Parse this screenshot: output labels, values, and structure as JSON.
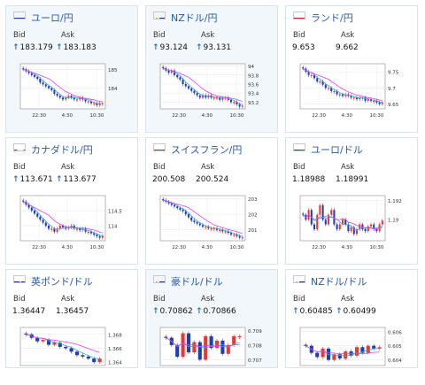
{
  "labels": {
    "bid": "Bid",
    "ask": "Ask"
  },
  "colors": {
    "up": "#e53935",
    "down": "#1e3cb4",
    "ma_short": "#3aa7d6",
    "ma_long": "#e040fb",
    "title": "#2a5aa0"
  },
  "cards": [
    {
      "title": "ユーロ/円",
      "flag": "eu",
      "bid": "183.179",
      "ask": "183.183",
      "bid_arrow": true,
      "ask_arrow": true,
      "yticks": [
        "185",
        "184"
      ],
      "xticks": [
        "22:30",
        "4:30",
        "10:30"
      ],
      "series": [
        185.0,
        184.9,
        184.8,
        184.7,
        184.6,
        184.5,
        184.3,
        184.2,
        184.1,
        184.0,
        183.9,
        183.7,
        183.6,
        183.5,
        183.4,
        183.5,
        183.6,
        183.5,
        183.4,
        183.4,
        183.5,
        183.4,
        183.3,
        183.3,
        183.2,
        183.2,
        183.1,
        183.2,
        183.2
      ],
      "ylim": [
        182.9,
        185.3
      ]
    },
    {
      "title": "NZドル/円",
      "flag": "nz",
      "bid": "93.124",
      "ask": "93.131",
      "bid_arrow": true,
      "ask_arrow": true,
      "yticks": [
        "94",
        "93.8",
        "93.6",
        "93.4",
        "93.2"
      ],
      "xticks": [
        "22:30",
        "4:30",
        "10:30"
      ],
      "series": [
        93.95,
        93.9,
        93.85,
        93.9,
        93.8,
        93.75,
        93.7,
        93.6,
        93.55,
        93.5,
        93.45,
        93.4,
        93.35,
        93.3,
        93.35,
        93.3,
        93.35,
        93.3,
        93.3,
        93.3,
        93.25,
        93.3,
        93.3,
        93.25,
        93.2,
        93.2,
        93.15,
        93.1,
        93.12
      ],
      "ylim": [
        93.05,
        94.05
      ]
    },
    {
      "title": "ランド/円",
      "flag": "za",
      "bid": "9.653",
      "ask": "9.662",
      "bid_arrow": false,
      "ask_arrow": false,
      "yticks": [
        "9.75",
        "9.7",
        "9.65"
      ],
      "xticks": [
        "22:30",
        "4:30",
        "10:30"
      ],
      "series": [
        9.76,
        9.75,
        9.74,
        9.74,
        9.73,
        9.72,
        9.72,
        9.71,
        9.7,
        9.7,
        9.69,
        9.69,
        9.68,
        9.68,
        9.675,
        9.68,
        9.675,
        9.67,
        9.67,
        9.665,
        9.67,
        9.67,
        9.66,
        9.665,
        9.66,
        9.66,
        9.655,
        9.65,
        9.655
      ],
      "ylim": [
        9.635,
        9.775
      ]
    },
    {
      "title": "カナダドル/円",
      "flag": "ca",
      "bid": "113.671",
      "ask": "113.677",
      "bid_arrow": true,
      "ask_arrow": true,
      "yticks": [
        "114.5",
        "114"
      ],
      "xticks": [
        "22:30",
        "4:30",
        "10:30"
      ],
      "series": [
        114.8,
        114.7,
        114.6,
        114.5,
        114.4,
        114.3,
        114.2,
        114.1,
        114.0,
        113.9,
        113.9,
        113.8,
        113.9,
        114.0,
        113.95,
        113.9,
        113.95,
        114.0,
        113.9,
        113.9,
        113.85,
        113.9,
        113.8,
        113.8,
        113.75,
        113.7,
        113.65,
        113.6,
        113.67
      ],
      "ylim": [
        113.5,
        115.0
      ]
    },
    {
      "title": "スイスフラン/円",
      "flag": "ch",
      "bid": "200.508",
      "ask": "200.524",
      "bid_arrow": false,
      "ask_arrow": false,
      "yticks": [
        "203",
        "202",
        "201"
      ],
      "xticks": [
        "22:30",
        "4:30",
        "10:30"
      ],
      "series": [
        202.9,
        202.8,
        202.7,
        202.6,
        202.5,
        202.4,
        202.3,
        202.2,
        202.0,
        201.8,
        201.6,
        201.5,
        201.4,
        201.3,
        201.2,
        201.2,
        201.1,
        201.1,
        201.1,
        201.0,
        201.0,
        200.9,
        200.9,
        200.8,
        200.7,
        200.7,
        200.6,
        200.5,
        200.52
      ],
      "ylim": [
        200.3,
        203.2
      ]
    },
    {
      "title": "ユーロ/ドル",
      "flag": "us",
      "bid": "1.18988",
      "ask": "1.18991",
      "bid_arrow": false,
      "ask_arrow": false,
      "yticks": [
        "1.192",
        "1.19"
      ],
      "xticks": [
        "22:30",
        "4:30",
        "10:30"
      ],
      "series": [
        1.1905,
        1.19,
        1.191,
        1.1895,
        1.189,
        1.1905,
        1.1915,
        1.19,
        1.1895,
        1.1905,
        1.191,
        1.1895,
        1.189,
        1.1895,
        1.19,
        1.1895,
        1.1888,
        1.1892,
        1.1885,
        1.189,
        1.1895,
        1.189,
        1.1888,
        1.1893,
        1.1895,
        1.189,
        1.1888,
        1.1895,
        1.1899
      ],
      "ylim": [
        1.1878,
        1.1925
      ]
    },
    {
      "title": "英ポンド/ドル",
      "flag": "gb",
      "bid": "1.36447",
      "ask": "1.36457",
      "bid_arrow": false,
      "ask_arrow": false,
      "yticks": [
        "1.368",
        "1.366",
        "1.364"
      ],
      "xticks": [],
      "series": [
        1.368,
        1.3675,
        1.367,
        1.3672,
        1.3665,
        1.3668,
        1.3662,
        1.366,
        1.3655,
        1.365,
        1.3648,
        1.3645,
        1.364,
        1.3645
      ],
      "ylim": [
        1.3635,
        1.369
      ]
    },
    {
      "title": "豪ドル/ドル",
      "flag": "au",
      "bid": "0.70862",
      "ask": "0.70866",
      "bid_arrow": true,
      "ask_arrow": true,
      "yticks": [
        "0.709",
        "0.708",
        "0.707"
      ],
      "xticks": [],
      "series": [
        0.7085,
        0.708,
        0.7072,
        0.7088,
        0.7075,
        0.7082,
        0.707,
        0.7086,
        0.7078,
        0.7083,
        0.7074,
        0.708,
        0.7086,
        0.7086
      ],
      "ylim": [
        0.7066,
        0.7092
      ]
    },
    {
      "title": "NZドル/ドル",
      "flag": "nz",
      "bid": "0.60485",
      "ask": "0.60499",
      "bid_arrow": true,
      "ask_arrow": true,
      "yticks": [
        "0.606",
        "0.605",
        "0.604"
      ],
      "xticks": [],
      "series": [
        0.605,
        0.6045,
        0.6042,
        0.6048,
        0.604,
        0.6044,
        0.6041,
        0.6046,
        0.6043,
        0.6049,
        0.6045,
        0.605,
        0.6048,
        0.6049
      ],
      "ylim": [
        0.6036,
        0.6063
      ]
    }
  ]
}
